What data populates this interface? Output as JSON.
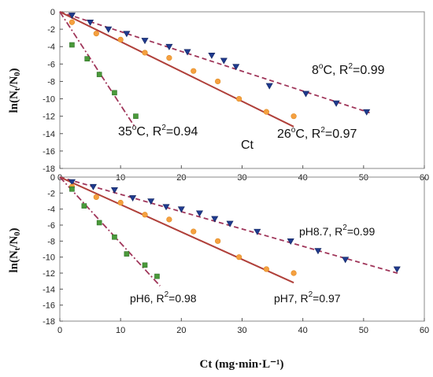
{
  "chart_data": [
    {
      "type": "scatter",
      "panel_label": "Ct",
      "ylabel": "ln(N_t/N_0)",
      "xlabel": "",
      "xlim": [
        0,
        60
      ],
      "ylim": [
        -18,
        0
      ],
      "xticks": [
        "0",
        "10",
        "20",
        "30",
        "40",
        "50",
        "60"
      ],
      "yticks": [
        "0",
        "-2",
        "-4",
        "-6",
        "-8",
        "-10",
        "-12",
        "-14",
        "-16",
        "-18"
      ],
      "series": [
        {
          "name": "8°C",
          "r2": "8°C, R²=0.99",
          "color": "#1f3a8f",
          "line_color": "#a0365a",
          "line_style": "dashed",
          "marker": "triangle-down",
          "x": [
            2,
            5,
            8,
            11,
            14,
            18,
            21,
            25,
            27,
            29,
            34.5,
            40.5,
            45.5,
            50.5
          ],
          "y": [
            -0.4,
            -1.2,
            -2.0,
            -2.5,
            -3.3,
            -4.0,
            -4.6,
            -5.0,
            -5.6,
            -6.3,
            -8.5,
            -9.4,
            -10.5,
            -11.5
          ],
          "fit": [
            [
              0,
              0
            ],
            [
              51,
              -11.6
            ]
          ]
        },
        {
          "name": "26°C",
          "r2": "26°C, R²=0.97",
          "color": "#f5a040",
          "line_color": "#b0403a",
          "line_style": "solid",
          "marker": "circle",
          "x": [
            2,
            6,
            10,
            14,
            18,
            22,
            26,
            29.5,
            34,
            38.5
          ],
          "y": [
            -1.2,
            -2.5,
            -3.2,
            -4.7,
            -5.3,
            -6.8,
            -8.0,
            -10.0,
            -11.5,
            -12.0
          ],
          "fit": [
            [
              0,
              0
            ],
            [
              38.5,
              -13.2
            ]
          ]
        },
        {
          "name": "35°C",
          "r2": "35°C, R²=0.94",
          "color": "#4a9a3a",
          "line_color": "#a0365a",
          "line_style": "dashdot",
          "marker": "square",
          "x": [
            2,
            4.5,
            6.5,
            9,
            12.5
          ],
          "y": [
            -3.8,
            -5.4,
            -7.2,
            -9.3,
            -12.0
          ],
          "fit": [
            [
              0,
              0
            ],
            [
              12.5,
              -13.4
            ]
          ]
        }
      ]
    },
    {
      "type": "scatter",
      "panel_label": "",
      "ylabel": "ln(N_t/N_0)",
      "xlabel": "Ct (mg·min·L⁻¹)",
      "xlim": [
        0,
        60
      ],
      "ylim": [
        -18,
        0
      ],
      "xticks": [
        "0",
        "10",
        "20",
        "30",
        "40",
        "50",
        "60"
      ],
      "yticks": [
        "0",
        "-2",
        "-4",
        "-6",
        "-8",
        "-10",
        "-12",
        "-14",
        "-16",
        "-18"
      ],
      "series": [
        {
          "name": "pH8.7",
          "r2": "pH8.7, R²=0.99",
          "color": "#1f3a8f",
          "line_color": "#a0365a",
          "line_style": "dashed",
          "marker": "triangle-down",
          "x": [
            2,
            5.5,
            9,
            12,
            15,
            17.5,
            20,
            23,
            25.5,
            28,
            32.5,
            38,
            42.5,
            47,
            55.5
          ],
          "y": [
            -0.6,
            -1.2,
            -1.6,
            -2.6,
            -3.0,
            -3.7,
            -4.0,
            -4.5,
            -5.2,
            -5.8,
            -6.8,
            -8.0,
            -9.2,
            -10.3,
            -11.5
          ],
          "fit": [
            [
              0,
              0
            ],
            [
              56,
              -12.1
            ]
          ]
        },
        {
          "name": "pH7",
          "r2": "pH7, R²=0.97",
          "color": "#f5a040",
          "line_color": "#b0403a",
          "line_style": "solid",
          "marker": "circle",
          "x": [
            2,
            6,
            10,
            14,
            18,
            22,
            26,
            29.5,
            34,
            38.5
          ],
          "y": [
            -1.2,
            -2.5,
            -3.2,
            -4.7,
            -5.3,
            -6.8,
            -8.0,
            -10.0,
            -11.5,
            -12.0
          ],
          "fit": [
            [
              0,
              0
            ],
            [
              38.5,
              -13.2
            ]
          ]
        },
        {
          "name": "pH6",
          "r2": "pH6, R²=0.98",
          "color": "#4a9a3a",
          "line_color": "#a0365a",
          "line_style": "dashdot",
          "marker": "square",
          "x": [
            2,
            4,
            6.5,
            9,
            11,
            14,
            16
          ],
          "y": [
            -1.5,
            -3.6,
            -5.7,
            -7.5,
            -9.6,
            -11.0,
            -12.4
          ],
          "fit": [
            [
              0,
              0
            ],
            [
              16.5,
              -13.6
            ]
          ]
        }
      ]
    }
  ]
}
